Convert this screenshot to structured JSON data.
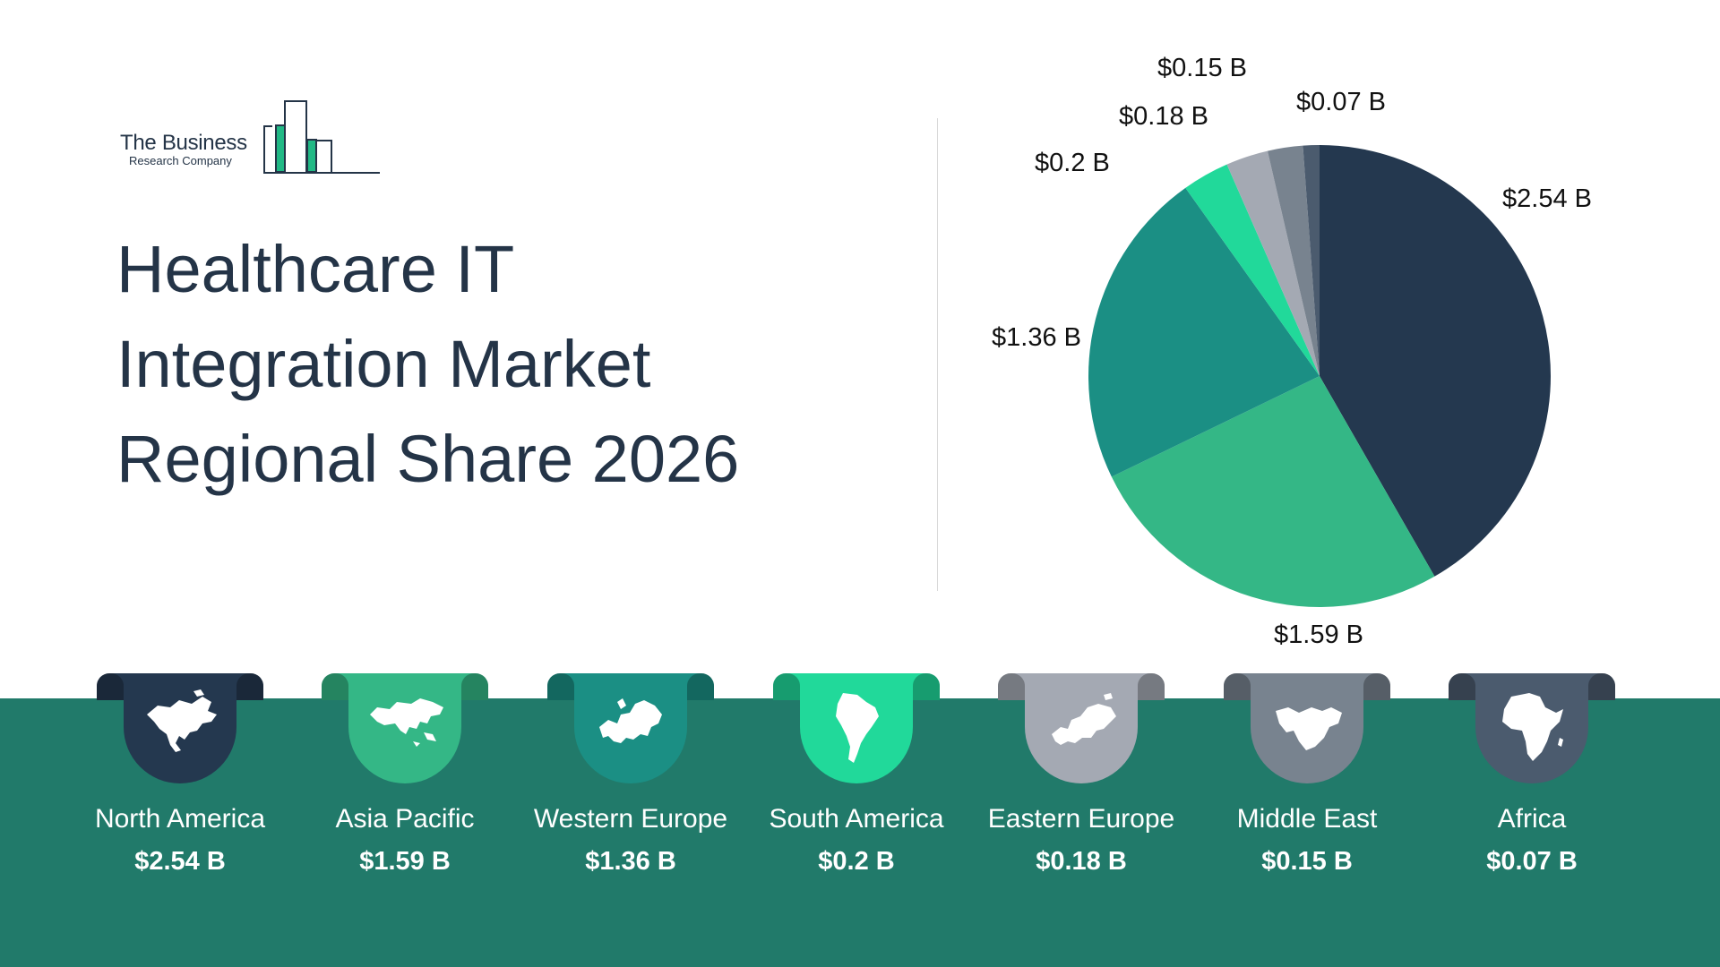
{
  "logo": {
    "line1": "The Business",
    "line2": "Research Company"
  },
  "title": {
    "line1": "Healthcare IT",
    "line2": "Integration Market",
    "line3": "Regional Share 2026"
  },
  "chart_data": {
    "type": "pie",
    "title": "Healthcare IT Integration Market Regional Share 2026",
    "unit": "$ B",
    "slices": [
      {
        "label": "North America",
        "value": 2.54,
        "display": "$2.54 B",
        "color": "#24384f"
      },
      {
        "label": "Asia Pacific",
        "value": 1.59,
        "display": "$1.59 B",
        "color": "#34b786"
      },
      {
        "label": "Western Europe",
        "value": 1.36,
        "display": "$1.36 B",
        "color": "#1b8f84"
      },
      {
        "label": "South America",
        "value": 0.2,
        "display": "$0.2 B",
        "color": "#21d99a"
      },
      {
        "label": "Eastern Europe",
        "value": 0.18,
        "display": "$0.18 B",
        "color": "#a4a9b3"
      },
      {
        "label": "Middle East",
        "value": 0.15,
        "display": "$0.15 B",
        "color": "#78838f"
      },
      {
        "label": "Africa",
        "value": 0.07,
        "display": "$0.07 B",
        "color": "#4b5b6e"
      }
    ]
  },
  "regions": [
    {
      "name": "North America",
      "value": "$2.54 B",
      "color": "#24384f",
      "icon": "north-america-map-icon"
    },
    {
      "name": "Asia Pacific",
      "value": "$1.59 B",
      "color": "#34b786",
      "icon": "asia-pacific-map-icon"
    },
    {
      "name": "Western Europe",
      "value": "$1.36 B",
      "color": "#1b8f84",
      "icon": "western-europe-map-icon"
    },
    {
      "name": "South America",
      "value": "$0.2 B",
      "color": "#21d99a",
      "icon": "south-america-map-icon"
    },
    {
      "name": "Eastern Europe",
      "value": "$0.18 B",
      "color": "#a4a9b3",
      "icon": "eastern-europe-map-icon"
    },
    {
      "name": "Middle East",
      "value": "$0.15 B",
      "color": "#78838f",
      "icon": "middle-east-map-icon"
    },
    {
      "name": "Africa",
      "value": "$0.07 B",
      "color": "#4b5b6e",
      "icon": "africa-map-icon"
    }
  ],
  "colors": {
    "band": "#217a6a",
    "title": "#243447",
    "logo_accent": "#21b985"
  }
}
